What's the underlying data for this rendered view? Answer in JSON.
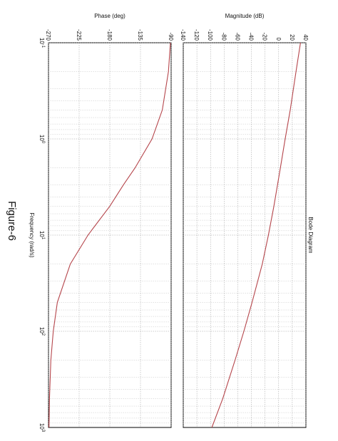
{
  "figure_caption": "Figure-6",
  "chart_data": {
    "type": "line",
    "title": "Bode Diagram",
    "xlabel": "Frequency  (rad/s)",
    "xscale": "log",
    "xlim": [
      0.1,
      1000
    ],
    "x_ticks": [
      {
        "base": "10",
        "exp": "-1"
      },
      {
        "base": "10",
        "exp": "0"
      },
      {
        "base": "10",
        "exp": "1"
      },
      {
        "base": "10",
        "exp": "2"
      },
      {
        "base": "10",
        "exp": "3"
      }
    ],
    "grid": true,
    "orientation": "rotated 90 degrees clockwise",
    "series_color": "#b5454b",
    "subplots": [
      {
        "name": "magnitude",
        "ylabel": "Magnitude (dB)",
        "ylim": [
          -140,
          40
        ],
        "y_ticks": [
          "-140",
          "-120",
          "-100",
          "-80",
          "-60",
          "-40",
          "-20",
          "0",
          "20",
          "40"
        ],
        "x": [
          0.1,
          0.2,
          0.5,
          1,
          2,
          5,
          10,
          20,
          50,
          100,
          200,
          500,
          1000
        ],
        "y": [
          32,
          25.5,
          17,
          9.5,
          2.5,
          -7,
          -15,
          -24,
          -39,
          -51,
          -64,
          -82,
          -98
        ]
      },
      {
        "name": "phase",
        "ylabel": "Phase (deg)",
        "ylim": [
          -270,
          -90
        ],
        "y_ticks": [
          "-270",
          "-225",
          "-180",
          "-135",
          "-90"
        ],
        "x": [
          0.1,
          0.2,
          0.5,
          1,
          2,
          3,
          5,
          10,
          20,
          50,
          100,
          200,
          500,
          1000
        ],
        "y": [
          -91,
          -94,
          -103,
          -118,
          -143,
          -160,
          -180,
          -212,
          -238,
          -257,
          -263,
          -266.5,
          -268.5,
          -269.3
        ]
      }
    ]
  }
}
